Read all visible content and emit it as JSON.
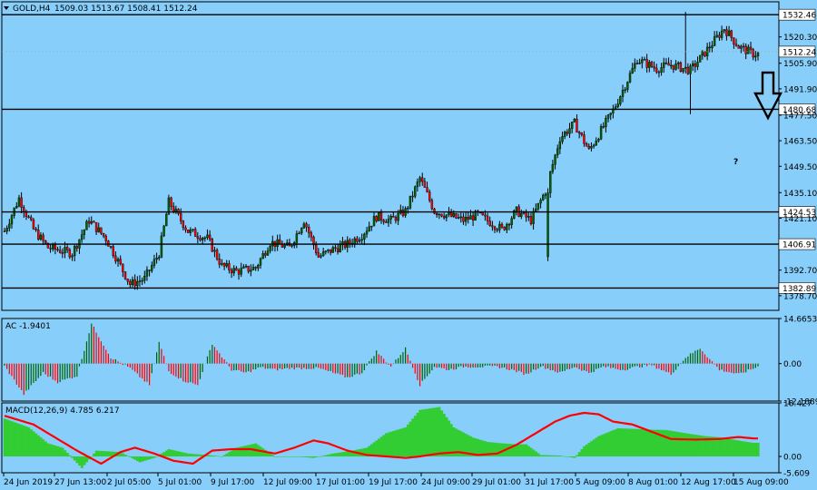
{
  "header": {
    "symbol": "GOLD,H4",
    "ohlc": "1509.03 1513.67 1508.41 1512.24"
  },
  "colors": {
    "background": "#87CEFA",
    "up": "#006400",
    "down": "#FF0000",
    "macd_hist": "#32CD32",
    "signal": "#FF0000",
    "line": "#000000"
  },
  "annotation": {
    "question": "?"
  },
  "chart_data": [
    {
      "type": "candlestick",
      "title": "GOLD,H4",
      "ylim": [
        1370.7,
        1539.5
      ],
      "y_ticks": [
        "1520.30",
        "1505.90",
        "1491.90",
        "1477.50",
        "1463.50",
        "1449.50",
        "1435.10",
        "1421.10",
        "1392.70",
        "1378.70"
      ],
      "levels": [
        "1532.46",
        "1480.68",
        "1424.53",
        "1406.91",
        "1382.89"
      ],
      "price_label": "1512.24",
      "x_labels": [
        "24 Jun 2019",
        "27 Jun 13:00",
        "2 Jul 05:00",
        "5 Jul 01:00",
        "9 Jul 17:00",
        "12 Jul 09:00",
        "17 Jul 01:00",
        "19 Jul 17:00",
        "24 Jul 09:00",
        "29 Jul 01:00",
        "31 Jul 17:00",
        "5 Aug 09:00",
        "8 Aug 01:00",
        "12 Aug 17:00",
        "15 Aug 09:00"
      ],
      "path": [
        [
          0,
          1414
        ],
        [
          6,
          1432
        ],
        [
          12,
          1415
        ],
        [
          18,
          1405
        ],
        [
          28,
          1402
        ],
        [
          35,
          1420
        ],
        [
          42,
          1410
        ],
        [
          52,
          1385
        ],
        [
          58,
          1388
        ],
        [
          64,
          1402
        ],
        [
          68,
          1430
        ],
        [
          76,
          1414
        ],
        [
          84,
          1410
        ],
        [
          90,
          1395
        ],
        [
          96,
          1392
        ],
        [
          104,
          1394
        ],
        [
          110,
          1408
        ],
        [
          118,
          1405
        ],
        [
          124,
          1420
        ],
        [
          130,
          1400
        ],
        [
          136,
          1404
        ],
        [
          142,
          1407
        ],
        [
          148,
          1412
        ],
        [
          154,
          1422
        ],
        [
          160,
          1420
        ],
        [
          166,
          1425
        ],
        [
          172,
          1443
        ],
        [
          178,
          1425
        ],
        [
          190,
          1420
        ],
        [
          196,
          1423
        ],
        [
          206,
          1415
        ],
        [
          212,
          1425
        ],
        [
          218,
          1420
        ],
        [
          224,
          1436
        ],
        [
          230,
          1465
        ],
        [
          236,
          1473
        ],
        [
          242,
          1458
        ],
        [
          252,
          1480
        ],
        [
          262,
          1508
        ],
        [
          270,
          1503
        ],
        [
          276,
          1505
        ],
        [
          284,
          1502
        ],
        [
          292,
          1515
        ],
        [
          298,
          1525
        ],
        [
          304,
          1515
        ],
        [
          310,
          1511
        ]
      ]
    },
    {
      "type": "bar",
      "title": "AC -1.9401",
      "ylim": [
        -12.1889,
        14.6653
      ],
      "y_ticks": [
        "14.6653",
        "0.00",
        "-12.1889"
      ],
      "path": [
        [
          0,
          -0.8
        ],
        [
          8,
          -10
        ],
        [
          16,
          -3
        ],
        [
          22,
          -6
        ],
        [
          30,
          -4
        ],
        [
          36,
          13
        ],
        [
          44,
          2
        ],
        [
          52,
          -1.5
        ],
        [
          60,
          -7
        ],
        [
          64,
          7
        ],
        [
          68,
          -2.5
        ],
        [
          74,
          -5.5
        ],
        [
          80,
          -7
        ],
        [
          86,
          6.5
        ],
        [
          94,
          -2
        ],
        [
          100,
          -3
        ],
        [
          106,
          -1.2
        ],
        [
          112,
          -2
        ],
        [
          118,
          -1.5
        ],
        [
          124,
          -1.5
        ],
        [
          130,
          -1.5
        ],
        [
          136,
          -3
        ],
        [
          142,
          -4.5
        ],
        [
          148,
          -3
        ],
        [
          154,
          4
        ],
        [
          160,
          -1
        ],
        [
          166,
          5
        ],
        [
          172,
          -7
        ],
        [
          178,
          -1
        ],
        [
          184,
          -2
        ],
        [
          190,
          -1
        ],
        [
          196,
          -1
        ],
        [
          204,
          -1
        ],
        [
          210,
          -2
        ],
        [
          216,
          -3.5
        ],
        [
          222,
          -0.8
        ],
        [
          230,
          -3
        ],
        [
          236,
          -1
        ],
        [
          242,
          -3
        ],
        [
          248,
          -1
        ],
        [
          256,
          -2
        ],
        [
          262,
          -1
        ],
        [
          268,
          -0.5
        ],
        [
          276,
          -3.5
        ],
        [
          282,
          2
        ],
        [
          288,
          5
        ],
        [
          296,
          -2
        ],
        [
          304,
          -3.5
        ],
        [
          312,
          -1
        ]
      ]
    },
    {
      "type": "bar+line",
      "title": "MACD(12,26,9) 4.785 6.217",
      "ylim": [
        -5.609,
        18.427
      ],
      "y_ticks": [
        "18.427",
        "0.00",
        "-5.609"
      ],
      "histogram": [
        [
          0,
          13
        ],
        [
          10,
          10
        ],
        [
          18,
          4.5
        ],
        [
          24,
          3
        ],
        [
          32,
          -4
        ],
        [
          38,
          2
        ],
        [
          48,
          1.5
        ],
        [
          56,
          -2
        ],
        [
          62,
          -0.5
        ],
        [
          68,
          2.5
        ],
        [
          76,
          1
        ],
        [
          84,
          0.5
        ],
        [
          90,
          0
        ],
        [
          96,
          3
        ],
        [
          104,
          4.5
        ],
        [
          112,
          0
        ],
        [
          120,
          0
        ],
        [
          128,
          -0.5
        ],
        [
          136,
          1
        ],
        [
          144,
          2
        ],
        [
          150,
          3
        ],
        [
          158,
          8
        ],
        [
          166,
          10
        ],
        [
          172,
          16
        ],
        [
          180,
          17
        ],
        [
          186,
          10
        ],
        [
          194,
          6.5
        ],
        [
          200,
          5
        ],
        [
          206,
          4.5
        ],
        [
          212,
          4.2
        ],
        [
          216,
          4.2
        ],
        [
          222,
          0.5
        ],
        [
          230,
          0.3
        ],
        [
          236,
          -0.5
        ],
        [
          240,
          3.5
        ],
        [
          246,
          7
        ],
        [
          254,
          9.7
        ],
        [
          260,
          9.5
        ],
        [
          268,
          9.2
        ],
        [
          274,
          9.1
        ],
        [
          282,
          8
        ],
        [
          290,
          7
        ],
        [
          296,
          6.6
        ],
        [
          306,
          5.2
        ],
        [
          310,
          4.7
        ]
      ],
      "signal": [
        [
          0,
          14
        ],
        [
          12,
          11
        ],
        [
          22,
          6
        ],
        [
          30,
          2
        ],
        [
          40,
          -2.5
        ],
        [
          48,
          1.5
        ],
        [
          54,
          3
        ],
        [
          62,
          1
        ],
        [
          70,
          -1.5
        ],
        [
          78,
          -2.5
        ],
        [
          86,
          2
        ],
        [
          94,
          2.5
        ],
        [
          102,
          2.5
        ],
        [
          112,
          1
        ],
        [
          120,
          3
        ],
        [
          128,
          5.5
        ],
        [
          134,
          4.5
        ],
        [
          142,
          2
        ],
        [
          150,
          0.5
        ],
        [
          158,
          0
        ],
        [
          166,
          -0.5
        ],
        [
          172,
          0
        ],
        [
          180,
          1
        ],
        [
          188,
          1.5
        ],
        [
          196,
          0.5
        ],
        [
          204,
          1
        ],
        [
          212,
          4
        ],
        [
          220,
          8
        ],
        [
          228,
          12
        ],
        [
          234,
          14
        ],
        [
          240,
          15
        ],
        [
          246,
          14.5
        ],
        [
          252,
          12
        ],
        [
          260,
          11
        ],
        [
          268,
          8.5
        ],
        [
          276,
          6
        ],
        [
          286,
          5.8
        ],
        [
          296,
          6
        ],
        [
          304,
          6.7
        ],
        [
          310,
          6.2
        ]
      ]
    }
  ]
}
